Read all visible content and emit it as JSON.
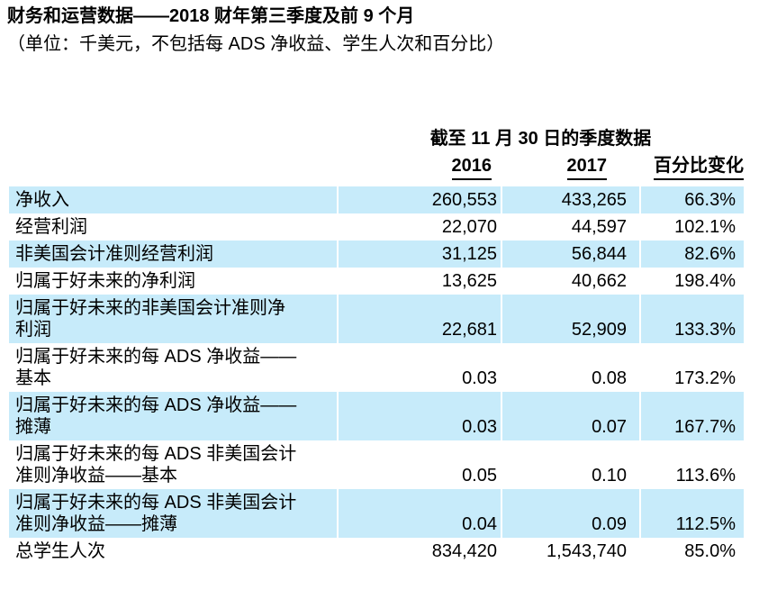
{
  "page": {
    "title": "财务和运营数据——2018 财年第三季度及前 9 个月",
    "subtitle": "（单位：千美元，不包括每 ADS 净收益、学生人次和百分比）"
  },
  "table": {
    "group_header": "截至 11 月 30 日的季度数据",
    "columns": [
      "2016",
      "2017",
      "百分比变化"
    ],
    "row_shade_color": "#c7ebfa",
    "rows": [
      {
        "label": "净收入",
        "v2016": "260,553",
        "v2017": "433,265",
        "pct_change": "66.3%"
      },
      {
        "label": "经营利润",
        "v2016": "22,070",
        "v2017": "44,597",
        "pct_change": "102.1%"
      },
      {
        "label": "非美国会计准则经营利润",
        "v2016": "31,125",
        "v2017": "56,844",
        "pct_change": "82.6%"
      },
      {
        "label": "归属于好未来的净利润",
        "v2016": "13,625",
        "v2017": "40,662",
        "pct_change": "198.4%"
      },
      {
        "label": "归属于好未来的非美国会计准则净\n利润",
        "v2016": "22,681",
        "v2017": "52,909",
        "pct_change": "133.3%"
      },
      {
        "label": "归属于好未来的每 ADS 净收益——\n基本",
        "v2016": "0.03",
        "v2017": "0.08",
        "pct_change": "173.2%"
      },
      {
        "label": "归属于好未来的每 ADS 净收益——\n摊薄",
        "v2016": "0.03",
        "v2017": "0.07",
        "pct_change": "167.7%"
      },
      {
        "label": "归属于好未来的每 ADS 非美国会计\n准则净收益——基本",
        "v2016": "0.05",
        "v2017": "0.10",
        "pct_change": "113.6%"
      },
      {
        "label": "归属于好未来的每 ADS 非美国会计\n准则净收益——摊薄",
        "v2016": "0.04",
        "v2017": "0.09",
        "pct_change": "112.5%"
      },
      {
        "label": "总学生人次",
        "v2016": "834,420",
        "v2017": "1,543,740",
        "pct_change": "85.0%"
      }
    ]
  }
}
